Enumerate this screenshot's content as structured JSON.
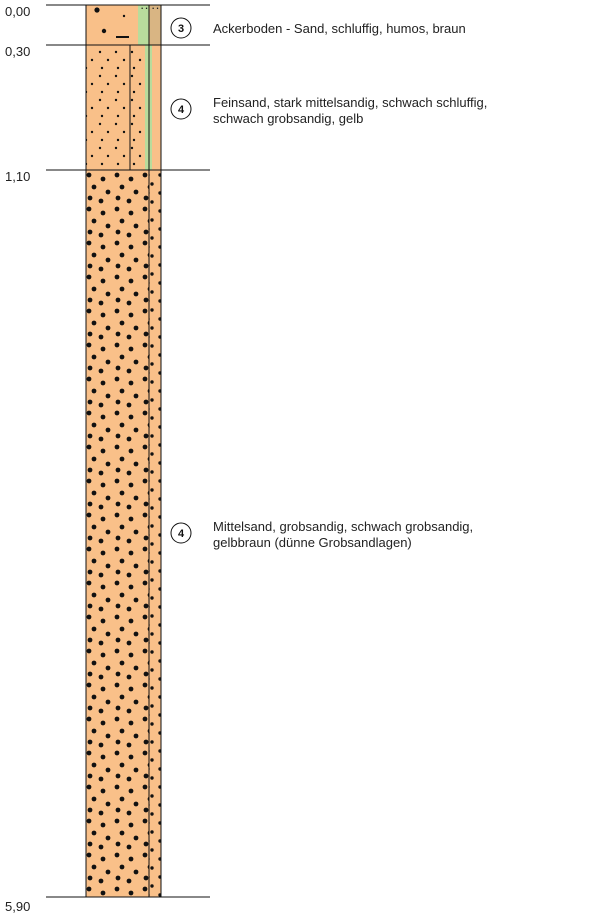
{
  "layers": [
    {
      "top": 0.0,
      "bottom": 0.3,
      "top_label": "0,00",
      "symbol": "3",
      "desc": [
        "Ackerboden - Sand, schluffig, humos, braun"
      ],
      "stripe1": "green",
      "stripe2": "tan"
    },
    {
      "top": 0.3,
      "bottom": 1.1,
      "top_label": "0,30",
      "symbol": "4",
      "desc": [
        "Feinsand, stark mittelsandig, schwach schluffig,",
        "schwach grobsandig, gelb"
      ],
      "stripe1": "fine",
      "stripe2": "green"
    },
    {
      "top": 1.1,
      "bottom": 5.9,
      "top_label": "1,10",
      "symbol": "4",
      "desc": [
        "Mittelsand, grobsandig, schwach grobsandig,",
        "gelbbraun (dünne Grobsandlagen)"
      ],
      "stripe1": "dots",
      "stripe2": "dots"
    }
  ],
  "final_depth_label": "5,90",
  "colors": {
    "sand": "#f9c089",
    "green": "#b9dc9c",
    "tan": "#d9b583",
    "line": "#111111",
    "dot": "#111111"
  }
}
